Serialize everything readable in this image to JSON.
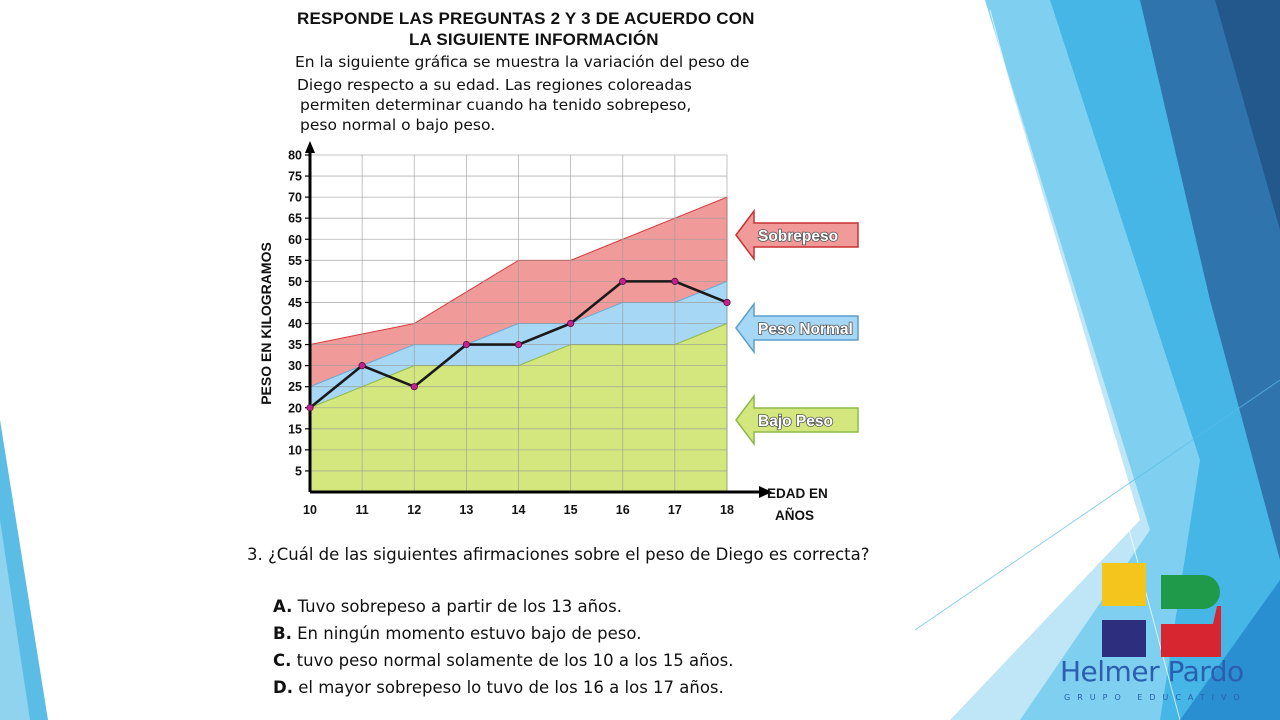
{
  "slide": {
    "title_line1": "RESPONDE LAS PREGUNTAS 2 Y 3 DE ACUERDO CON",
    "title_line2": "LA SIGUIENTE INFORMACIÓN",
    "intro_lines": [
      "En la siguiente gráfica se muestra la variación del peso de",
      "Diego respecto a su edad. Las regiones  coloreadas",
      "permiten determinar cuando ha tenido sobrepeso,",
      "peso normal o bajo peso."
    ],
    "question": "3. ¿Cuál de las siguientes afirmaciones sobre el peso de Diego es correcta?",
    "options": [
      {
        "letter": "A.",
        "text": "Tuvo sobrepeso a partir de los 13 años."
      },
      {
        "letter": "B.",
        "text": "En ningún momento estuvo bajo de peso."
      },
      {
        "letter": "C.",
        "text": "tuvo peso normal solamente de los 10 a los 15 años."
      },
      {
        "letter": "D.",
        "text": "el mayor sobrepeso lo tuvo de los 16 a los 17 años."
      }
    ]
  },
  "logo": {
    "name": "Helmer Pardo",
    "subtitle": "GRUPO EDUCATIVO",
    "colors": [
      "#f4c51c",
      "#1e9a4a",
      "#2d2f7e",
      "#d7262f"
    ]
  },
  "chart_data": {
    "type": "area",
    "ylabel": "PESO EN KILOGRAMOS",
    "xlabel": "EDAD EN AÑOS",
    "x": [
      10,
      11,
      12,
      13,
      14,
      15,
      16,
      17,
      18
    ],
    "ylim": [
      0,
      80
    ],
    "yticks": [
      5,
      10,
      15,
      20,
      25,
      30,
      35,
      40,
      45,
      50,
      55,
      60,
      65,
      70,
      75,
      80
    ],
    "grid": true,
    "regions": [
      {
        "name": "Bajo Peso",
        "color": "#d3e77e",
        "upper": [
          20,
          25,
          30,
          30,
          30,
          35,
          35,
          35,
          40
        ]
      },
      {
        "name": "Peso Normal",
        "color": "#a6d7f5",
        "upper": [
          25,
          30,
          35,
          35,
          40,
          40,
          45,
          45,
          50
        ]
      },
      {
        "name": "Sobrepeso",
        "color": "#f09a9a",
        "upper": [
          35,
          37.5,
          40,
          47.5,
          55,
          55,
          60,
          65,
          70
        ]
      }
    ],
    "series": [
      {
        "values": [
          20,
          30,
          25,
          35,
          35,
          40,
          50,
          50,
          45
        ]
      }
    ]
  }
}
